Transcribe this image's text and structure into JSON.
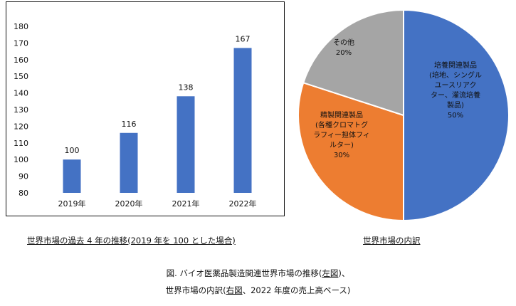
{
  "chart_data": [
    {
      "type": "bar",
      "categories": [
        "2019年",
        "2020年",
        "2021年",
        "2022年"
      ],
      "values": [
        100,
        116,
        138,
        167
      ],
      "ylim": [
        80,
        180
      ],
      "yticks": [
        80,
        90,
        100,
        110,
        120,
        130,
        140,
        150,
        160,
        170,
        180
      ],
      "color": "#4472C4",
      "grid": false,
      "caption": "世界市場の過去 4 年の推移(2019 年を 100 とした場合)"
    },
    {
      "type": "pie",
      "slices": [
        {
          "label_lines": [
            "培養関連製品",
            "(培地、シングル",
            "ユースリアク",
            "ター、灌流培養",
            "製品)"
          ],
          "value": 50,
          "value_label": "50%",
          "color": "#4472C4"
        },
        {
          "label_lines": [
            "精製関連製品",
            "(各種クロマトグ",
            "ラフィー担体フィ",
            "ルター)"
          ],
          "value": 30,
          "value_label": "30%",
          "color": "#ED7D31"
        },
        {
          "label_lines": [
            "その他"
          ],
          "value": 20,
          "value_label": "20%",
          "color": "#A5A5A5"
        }
      ],
      "caption": "世界市場の内訳"
    }
  ],
  "figure_caption": {
    "line1": {
      "before": "図. バイオ医薬品製造関連世界市場の推移(",
      "link": "左図",
      "after": ")、"
    },
    "line2": {
      "before": "世界市場の内訳(",
      "link": "右図",
      "after": "、2022 年度の売上高ベース)"
    }
  }
}
